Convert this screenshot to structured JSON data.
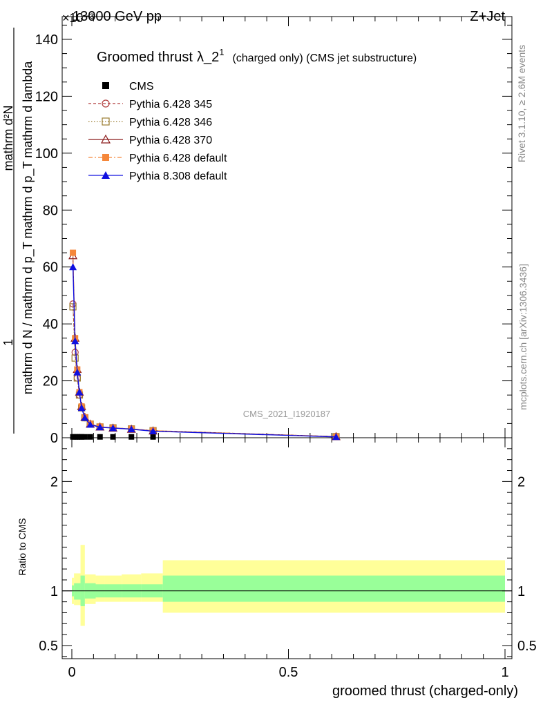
{
  "header": {
    "left": "13000 GeV pp",
    "right": "Z+Jet",
    "exponent": "×10⁻³"
  },
  "side": {
    "rivet": "Rivet 3.1.10, ≥ 2.6M events",
    "mcplots": "mcplots.cern.ch [arXiv:1306.3436]"
  },
  "plot_title": {
    "main": "Groomed thrust",
    "lambda": "λ_2",
    "sup": "1",
    "extra": "(charged only) (CMS jet substructure)"
  },
  "analysis_tag": "CMS_2021_I1920187",
  "ylabel_main": {
    "numerator": "1",
    "denominator": "mathrm d N / mathrm d p_T mathrm d p_T mathrm d lambda",
    "top": "mathrm d²N"
  },
  "ylabel_ratio": "Ratio to CMS",
  "xlabel": "groomed thrust (charged-only)",
  "colors": {
    "cms": "#000000",
    "p345": "#b03a3a",
    "p346": "#9a7b2e",
    "p370": "#8b1a1a",
    "p428": "#f5873a",
    "p8": "#1010e0",
    "band_outer": "#ffff99",
    "band_inner": "#99ff99"
  },
  "chart_data": {
    "type": "line",
    "xlim": [
      0,
      1
    ],
    "main_ylim": [
      0,
      148
    ],
    "main_yticks": [
      0,
      20,
      40,
      60,
      80,
      100,
      120,
      140
    ],
    "ratio_ylim": [
      0.38,
      2.4
    ],
    "ratio_yticks": [
      0.5,
      1,
      2
    ],
    "xticks": [
      0,
      0.5,
      1
    ],
    "xtick_labels": [
      "0",
      "0.5",
      "1"
    ],
    "ratio_ytick_labels": [
      "0.5",
      "1",
      "2"
    ],
    "main_ytick_labels": [
      "0",
      "20",
      "40",
      "60",
      "80",
      "100",
      "120",
      "140"
    ],
    "x": [
      0.0025,
      0.0075,
      0.0125,
      0.0175,
      0.0225,
      0.03,
      0.0425,
      0.065,
      0.095,
      0.1375,
      0.1875,
      0.61
    ],
    "series": [
      {
        "name": "CMS",
        "key": "cms",
        "values": [
          0.3,
          0.3,
          0.3,
          0.3,
          0.3,
          0.3,
          0.3,
          0.3,
          0.3,
          0.3,
          0.3,
          0.3
        ]
      },
      {
        "name": "Pythia 6.428 345",
        "key": "p345",
        "values": [
          47,
          30,
          21,
          15,
          10.5,
          7,
          4.8,
          3.8,
          3.5,
          3.1,
          2.5,
          0.4
        ]
      },
      {
        "name": "Pythia 6.428 346",
        "key": "p346",
        "values": [
          46,
          28,
          21,
          15,
          10.5,
          7,
          4.8,
          3.8,
          3.5,
          3.1,
          2.5,
          0.4
        ]
      },
      {
        "name": "Pythia 6.428 370",
        "key": "p370",
        "values": [
          64,
          35,
          24,
          16,
          11,
          7.2,
          4.8,
          3.8,
          3.4,
          3.0,
          2.4,
          0.4
        ]
      },
      {
        "name": "Pythia 6.428 default",
        "key": "p428",
        "values": [
          65,
          35,
          24,
          16,
          11,
          7.2,
          4.9,
          3.9,
          3.5,
          3.1,
          2.5,
          0.4
        ]
      },
      {
        "name": "Pythia 8.308 default",
        "key": "p8",
        "values": [
          60,
          34,
          23,
          16,
          10.5,
          7,
          4.6,
          3.7,
          3.4,
          3.0,
          2.3,
          0.3
        ]
      }
    ],
    "ratio_bands": [
      {
        "x0": 0.0,
        "x1": 0.005,
        "outer": [
          0.88,
          1.12
        ],
        "inner": [
          0.95,
          1.05
        ]
      },
      {
        "x0": 0.005,
        "x1": 0.02,
        "outer": [
          0.87,
          1.16
        ],
        "inner": [
          0.92,
          1.07
        ]
      },
      {
        "x0": 0.02,
        "x1": 0.03,
        "outer": [
          0.68,
          1.42
        ],
        "inner": [
          0.86,
          1.14
        ]
      },
      {
        "x0": 0.03,
        "x1": 0.055,
        "outer": [
          0.88,
          1.15
        ],
        "inner": [
          0.93,
          1.07
        ]
      },
      {
        "x0": 0.055,
        "x1": 0.075,
        "outer": [
          0.9,
          1.14
        ],
        "inner": [
          0.94,
          1.06
        ]
      },
      {
        "x0": 0.075,
        "x1": 0.115,
        "outer": [
          0.9,
          1.14
        ],
        "inner": [
          0.94,
          1.06
        ]
      },
      {
        "x0": 0.115,
        "x1": 0.16,
        "outer": [
          0.9,
          1.15
        ],
        "inner": [
          0.94,
          1.06
        ]
      },
      {
        "x0": 0.16,
        "x1": 0.21,
        "outer": [
          0.9,
          1.16
        ],
        "inner": [
          0.94,
          1.06
        ]
      },
      {
        "x0": 0.21,
        "x1": 1.0,
        "outer": [
          0.8,
          1.28
        ],
        "inner": [
          0.9,
          1.14
        ]
      }
    ]
  }
}
